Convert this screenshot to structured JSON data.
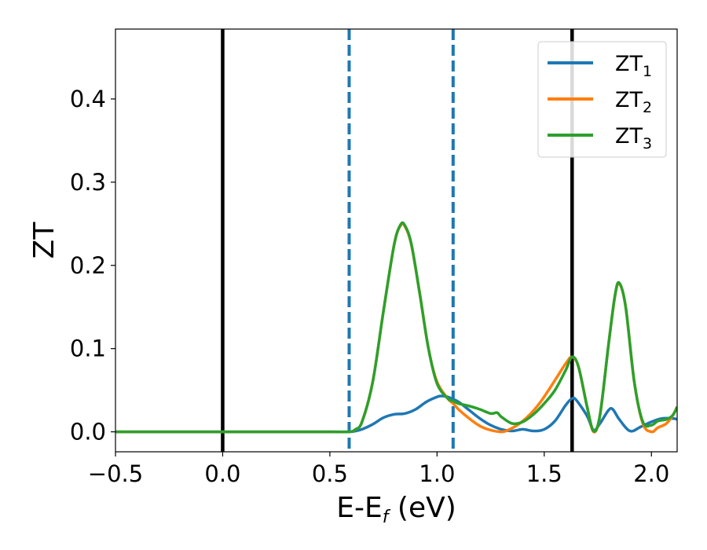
{
  "chart_data": {
    "type": "line",
    "title": "",
    "xlabel": "E-E",
    "xlabel_sub": "f",
    "xlabel_unit": " (eV)",
    "ylabel": "ZT",
    "xlim": [
      -0.5,
      2.12
    ],
    "ylim": [
      -0.024,
      0.484
    ],
    "xticks": [
      -0.5,
      0.0,
      0.5,
      1.0,
      1.5,
      2.0
    ],
    "xtick_labels": [
      "−0.5",
      "0.0",
      "0.5",
      "1.0",
      "1.5",
      "2.0"
    ],
    "yticks": [
      0.0,
      0.1,
      0.2,
      0.3,
      0.4
    ],
    "ytick_labels": [
      "0.0",
      "0.1",
      "0.2",
      "0.3",
      "0.4"
    ],
    "grid": false,
    "legend_position": "top-right",
    "vlines": [
      {
        "x": 0.0,
        "style": "solid",
        "color": "#000000"
      },
      {
        "x": 1.63,
        "style": "solid",
        "color": "#000000"
      },
      {
        "x": 0.59,
        "style": "dashed",
        "color": "#1f77b4"
      },
      {
        "x": 1.075,
        "style": "dashed",
        "color": "#1f77b4"
      }
    ],
    "series": [
      {
        "name": "ZT",
        "name_sub": "1",
        "color": "#1f77b4",
        "x": [
          -0.5,
          0.0,
          0.5,
          0.59,
          0.62,
          0.65,
          0.7,
          0.75,
          0.8,
          0.85,
          0.9,
          0.95,
          1.0,
          1.02,
          1.05,
          1.1,
          1.15,
          1.2,
          1.25,
          1.3,
          1.35,
          1.4,
          1.45,
          1.5,
          1.55,
          1.6,
          1.63,
          1.65,
          1.7,
          1.73,
          1.76,
          1.8,
          1.82,
          1.85,
          1.9,
          1.95,
          2.0,
          2.05,
          2.1,
          2.12
        ],
        "y": [
          0.0,
          0.0,
          0.0,
          0.0,
          0.001,
          0.003,
          0.009,
          0.017,
          0.021,
          0.022,
          0.027,
          0.036,
          0.042,
          0.043,
          0.042,
          0.036,
          0.026,
          0.016,
          0.008,
          0.003,
          0.001,
          0.003,
          0.001,
          0.003,
          0.013,
          0.032,
          0.04,
          0.038,
          0.019,
          0.002,
          0.01,
          0.026,
          0.027,
          0.015,
          0.001,
          0.006,
          0.012,
          0.016,
          0.016,
          0.015
        ]
      },
      {
        "name": "ZT",
        "name_sub": "2",
        "color": "#ff7f0e",
        "x": [
          -0.5,
          0.0,
          0.5,
          0.59,
          0.62,
          0.65,
          0.7,
          0.75,
          0.8,
          0.83,
          0.85,
          0.88,
          0.92,
          0.96,
          1.0,
          1.05,
          1.075,
          1.1,
          1.15,
          1.2,
          1.25,
          1.3,
          1.33,
          1.38,
          1.43,
          1.48,
          1.52,
          1.56,
          1.6,
          1.63,
          1.66,
          1.7,
          1.73,
          1.76,
          1.8,
          1.83,
          1.85,
          1.88,
          1.92,
          1.96,
          2.0,
          2.03,
          2.07,
          2.1,
          2.12
        ],
        "y": [
          0.0,
          0.0,
          0.0,
          0.0,
          0.003,
          0.012,
          0.06,
          0.145,
          0.225,
          0.248,
          0.247,
          0.225,
          0.165,
          0.1,
          0.06,
          0.04,
          0.034,
          0.027,
          0.016,
          0.007,
          0.002,
          0.0,
          0.002,
          0.009,
          0.02,
          0.035,
          0.05,
          0.066,
          0.082,
          0.09,
          0.078,
          0.03,
          0.0,
          0.02,
          0.105,
          0.163,
          0.178,
          0.15,
          0.06,
          0.01,
          0.0,
          0.005,
          0.01,
          0.02,
          0.03
        ]
      },
      {
        "name": "ZT",
        "name_sub": "3",
        "color": "#2ca02c",
        "x": [
          -0.5,
          0.0,
          0.5,
          0.59,
          0.62,
          0.65,
          0.7,
          0.75,
          0.8,
          0.83,
          0.85,
          0.88,
          0.92,
          0.96,
          1.0,
          1.05,
          1.075,
          1.1,
          1.15,
          1.2,
          1.25,
          1.28,
          1.3,
          1.35,
          1.4,
          1.45,
          1.5,
          1.55,
          1.6,
          1.63,
          1.66,
          1.7,
          1.73,
          1.76,
          1.8,
          1.83,
          1.85,
          1.88,
          1.92,
          1.96,
          2.0,
          2.03,
          2.07,
          2.1,
          2.12
        ],
        "y": [
          0.0,
          0.0,
          0.0,
          0.0,
          0.003,
          0.012,
          0.06,
          0.145,
          0.225,
          0.249,
          0.248,
          0.226,
          0.165,
          0.1,
          0.058,
          0.04,
          0.037,
          0.034,
          0.031,
          0.027,
          0.022,
          0.023,
          0.018,
          0.01,
          0.012,
          0.021,
          0.034,
          0.05,
          0.074,
          0.09,
          0.078,
          0.03,
          0.001,
          0.02,
          0.105,
          0.164,
          0.179,
          0.15,
          0.06,
          0.012,
          0.008,
          0.013,
          0.015,
          0.02,
          0.03
        ]
      }
    ]
  }
}
